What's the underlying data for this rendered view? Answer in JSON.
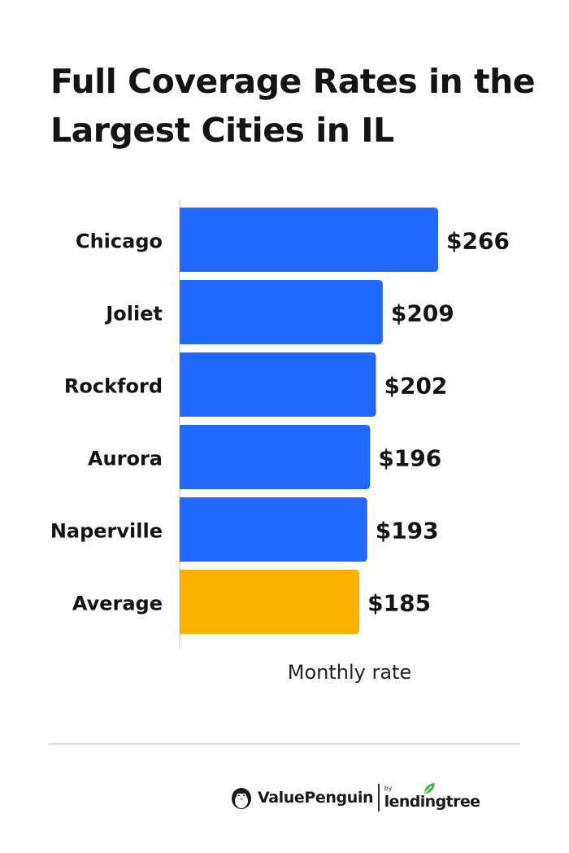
{
  "chart_data": {
    "type": "bar",
    "orientation": "horizontal",
    "title": "Full Coverage Rates in the Largest Cities in IL",
    "categories": [
      "Chicago",
      "Joliet",
      "Rockford",
      "Aurora",
      "Naperville",
      "Average"
    ],
    "values": [
      266,
      209,
      202,
      196,
      193,
      185
    ],
    "value_labels": [
      "$266",
      "$209",
      "$202",
      "$196",
      "$193",
      "$185"
    ],
    "xlabel": "Monthly rate",
    "ylabel": "",
    "xlim": [
      0,
      266
    ],
    "grid": false,
    "legend": "none",
    "bar_colors": [
      "#2168FE",
      "#2168FE",
      "#2168FE",
      "#2168FE",
      "#2168FE",
      "#F9B200"
    ]
  },
  "branding": {
    "brand_name": "ValuePenguin",
    "by_text": "by",
    "partner_name": "lendingtree",
    "icons": [
      "penguin-icon",
      "leaf-icon"
    ]
  },
  "colors": {
    "bar_primary": "#2168FE",
    "bar_highlight": "#F9B200",
    "text": "#111111",
    "axis_line": "#d6d6d6",
    "leaf_green": "#3bb54a"
  }
}
